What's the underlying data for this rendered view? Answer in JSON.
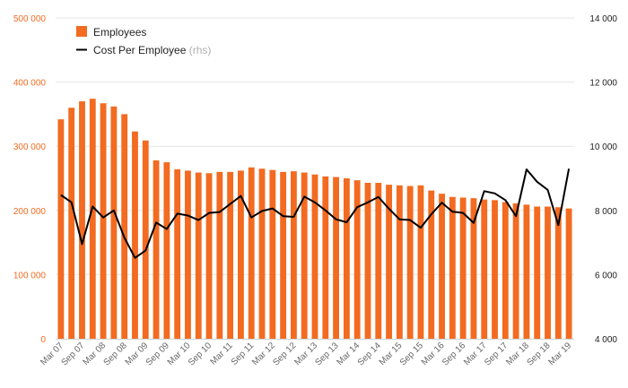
{
  "chart_data": {
    "type": "bar",
    "x": [
      "Mar 07",
      "Jun 07",
      "Sep 07",
      "Dec 07",
      "Mar 08",
      "Jun 08",
      "Sep 08",
      "Dec 08",
      "Mar 09",
      "Jun 09",
      "Sep 09",
      "Dec 09",
      "Mar 10",
      "Jun 10",
      "Sep 10",
      "Dec 10",
      "Mar 11",
      "Jun 11",
      "Sep 11",
      "Dec 11",
      "Mar 12",
      "Jun 12",
      "Sep 12",
      "Dec 12",
      "Mar 13",
      "Jun 13",
      "Sep 13",
      "Dec 13",
      "Mar 14",
      "Jun 14",
      "Sep 14",
      "Dec 14",
      "Mar 15",
      "Jun 15",
      "Sep 15",
      "Dec 15",
      "Mar 16",
      "Jun 16",
      "Sep 16",
      "Dec 16",
      "Mar 17",
      "Jun 17",
      "Sep 17",
      "Dec 17",
      "Mar 18",
      "Jun 18",
      "Sep 18",
      "Dec 18",
      "Mar 19"
    ],
    "x_tick_labels": [
      "Mar 07",
      "Sep 07",
      "Mar 08",
      "Sep 08",
      "Mar 09",
      "Sep 09",
      "Mar 10",
      "Sep 10",
      "Mar 11",
      "Sep 11",
      "Mar 12",
      "Sep 12",
      "Mar 13",
      "Sep 13",
      "Mar 14",
      "Sep 14",
      "Mar 15",
      "Sep 15",
      "Mar 16",
      "Sep 16",
      "Mar 17",
      "Sep 17",
      "Mar 18",
      "Sep 18",
      "Mar 19"
    ],
    "series": [
      {
        "name": "Employees",
        "axis": "left",
        "kind": "bar",
        "color": "#f26b21",
        "values": [
          342000,
          360000,
          370000,
          374000,
          367000,
          362000,
          350000,
          323000,
          309000,
          278000,
          275000,
          264000,
          262000,
          259000,
          258000,
          260000,
          260000,
          262000,
          267000,
          265000,
          263000,
          260000,
          261000,
          259000,
          256000,
          253000,
          252000,
          250000,
          247000,
          243000,
          243000,
          240000,
          239000,
          238000,
          239000,
          231000,
          226000,
          221000,
          220000,
          219000,
          217000,
          216000,
          213000,
          211000,
          209000,
          206000,
          206000,
          205000,
          203000
        ]
      },
      {
        "name": "Cost Per Employee",
        "name_suffix": "(rhs)",
        "axis": "right",
        "kind": "line",
        "color": "#000000",
        "values": [
          8480,
          8250,
          6950,
          8120,
          7780,
          8000,
          7150,
          6520,
          6750,
          7620,
          7420,
          7900,
          7840,
          7700,
          7920,
          7950,
          8200,
          8450,
          7780,
          7980,
          8060,
          7820,
          7800,
          8430,
          8250,
          8000,
          7720,
          7630,
          8100,
          8250,
          8420,
          8050,
          7720,
          7700,
          7460,
          7880,
          8240,
          7960,
          7920,
          7610,
          8600,
          8530,
          8320,
          7820,
          9280,
          8890,
          8640,
          7540,
          9300
        ]
      }
    ],
    "y_left": {
      "ylim": [
        0,
        500000
      ],
      "ticks": [
        0,
        100000,
        200000,
        300000,
        400000,
        500000
      ],
      "tick_labels": [
        "0",
        "100 000",
        "200 000",
        "300 000",
        "400 000",
        "500 000"
      ]
    },
    "y_right": {
      "ylim": [
        4000,
        14000
      ],
      "ticks": [
        4000,
        6000,
        8000,
        10000,
        12000,
        14000
      ],
      "tick_labels": [
        "4 000",
        "6 000",
        "8 000",
        "10 000",
        "12 000",
        "14 000"
      ]
    },
    "title": "",
    "xlabel": "",
    "ylabel": "",
    "grid": true,
    "legend": {
      "position": "top-left"
    }
  },
  "colors": {
    "bar": "#f26b21",
    "line": "#000000",
    "left_axis_text": "#f26b21",
    "right_axis_text": "#222222",
    "grid": "#e6e6e6"
  }
}
